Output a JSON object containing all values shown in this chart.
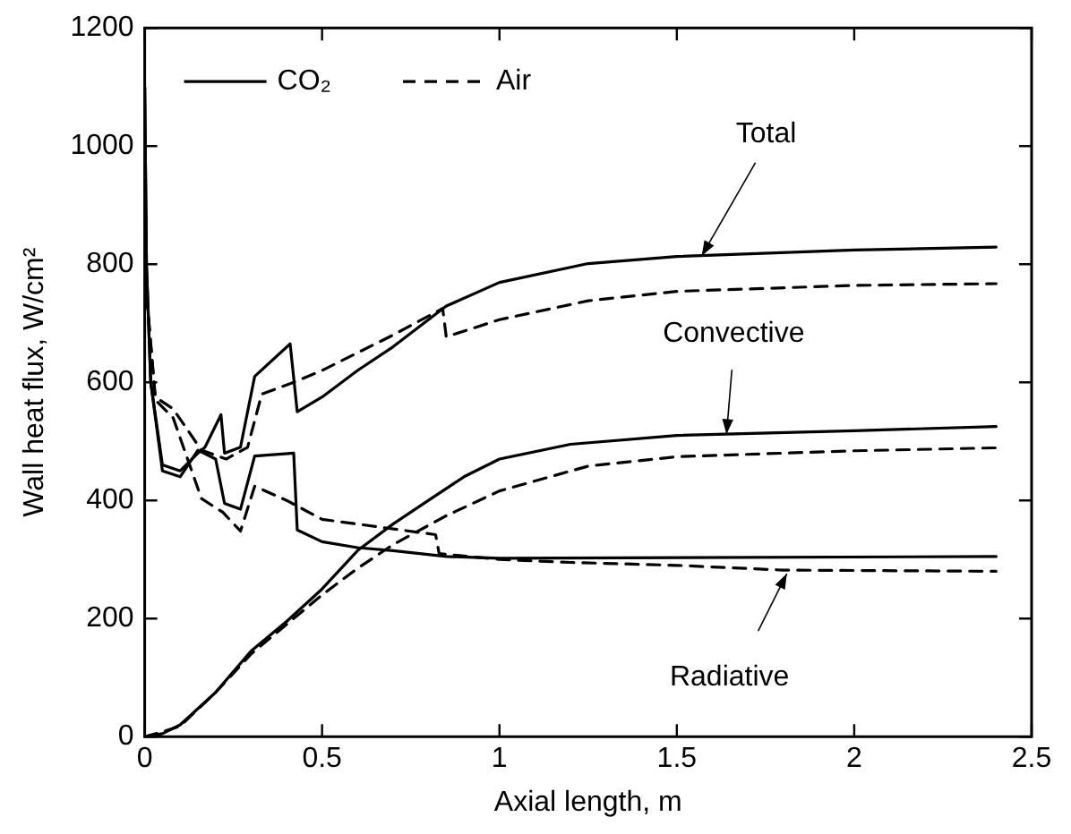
{
  "chart_data": {
    "type": "line",
    "xlabel": "Axial length, m",
    "ylabel": "Wall heat flux, W/cm²",
    "xlim": [
      0,
      2.5
    ],
    "xticks": [
      0,
      0.5,
      1,
      1.5,
      2,
      2.5
    ],
    "ylim": [
      0,
      1200
    ],
    "yticks": [
      0,
      200,
      400,
      600,
      800,
      1000,
      1200
    ],
    "grid": false,
    "legend": "top left",
    "marker": "none",
    "series": [
      {
        "name": "CO₂",
        "color": "#000000",
        "line_style": "solid",
        "x": [
          0,
          0.005,
          0.017,
          0.05,
          0.1,
          0.15,
          0.17,
          0.215,
          0.225,
          0.27,
          0.31,
          0.41,
          0.43,
          0.5,
          0.6,
          0.7,
          0.85,
          1.0,
          1.25,
          1.5,
          2.0,
          2.4
        ],
        "values": [
          1100,
          800,
          600,
          460,
          450,
          480,
          490,
          545,
          480,
          490,
          610,
          665,
          550,
          575,
          620,
          660,
          729,
          769,
          801,
          813,
          824,
          829
        ]
      },
      {
        "name": "Air",
        "color": "#000000",
        "line_style": "dashed",
        "x": [
          0,
          0.005,
          0.03,
          0.08,
          0.16,
          0.23,
          0.29,
          0.33,
          0.42,
          0.5,
          0.6,
          0.7,
          0.84,
          0.85,
          1.0,
          1.25,
          1.5,
          2.0,
          2.4
        ],
        "values": [
          1000,
          750,
          575,
          555,
          485,
          470,
          490,
          580,
          600,
          620,
          650,
          680,
          725,
          677,
          706,
          738,
          754,
          764,
          767
        ]
      },
      {
        "color": "#000000",
        "line_style": "solid",
        "x": [
          0,
          0.05,
          0.1,
          0.2,
          0.3,
          0.4,
          0.5,
          0.6,
          0.7,
          0.8,
          0.9,
          1.0,
          1.2,
          1.5,
          2.0,
          2.4
        ],
        "values": [
          0,
          5,
          20,
          75,
          145,
          195,
          250,
          315,
          360,
          400,
          440,
          470,
          495,
          510,
          518,
          525
        ]
      },
      {
        "color": "#000000",
        "line_style": "dashed",
        "x": [
          0,
          0.05,
          0.1,
          0.2,
          0.3,
          0.4,
          0.5,
          0.6,
          0.7,
          0.85,
          1.0,
          1.25,
          1.5,
          2.0,
          2.4
        ],
        "values": [
          0,
          8,
          18,
          75,
          140,
          190,
          240,
          285,
          325,
          374,
          416,
          458,
          474,
          484,
          489
        ]
      },
      {
        "color": "#000000",
        "line_style": "solid",
        "x": [
          0,
          0.005,
          0.017,
          0.05,
          0.1,
          0.15,
          0.2,
          0.225,
          0.27,
          0.31,
          0.42,
          0.43,
          0.5,
          0.6,
          0.7,
          0.85,
          1.0,
          2.4
        ],
        "values": [
          1100,
          800,
          600,
          450,
          440,
          485,
          470,
          395,
          385,
          475,
          480,
          350,
          330,
          320,
          315,
          305,
          302,
          305
        ]
      },
      {
        "color": "#000000",
        "line_style": "dashed",
        "x": [
          0,
          0.005,
          0.03,
          0.08,
          0.16,
          0.22,
          0.27,
          0.31,
          0.4,
          0.5,
          0.82,
          0.83,
          1.0,
          1.2,
          1.5,
          1.8,
          2.4
        ],
        "values": [
          1000,
          750,
          570,
          540,
          403,
          380,
          348,
          424,
          400,
          368,
          342,
          310,
          300,
          295,
          290,
          282,
          280
        ]
      }
    ],
    "annotations": [
      {
        "text": "Total",
        "x": 1.57,
        "y": 814
      },
      {
        "text": "Convective",
        "x": 1.64,
        "y": 512
      },
      {
        "text": "Radiative",
        "x": 1.81,
        "y": 276
      }
    ]
  }
}
